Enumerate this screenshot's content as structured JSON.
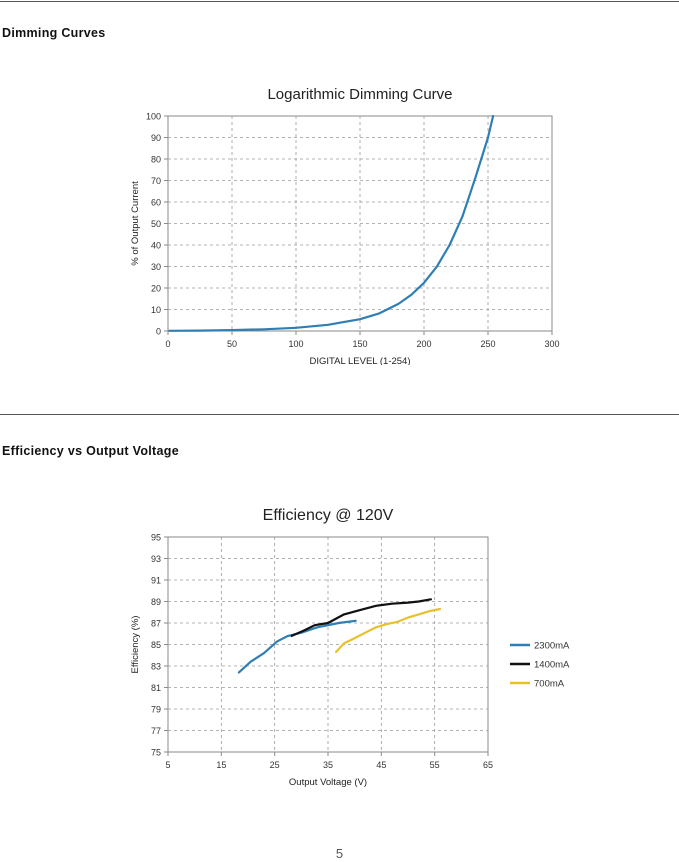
{
  "sections": {
    "dimming_title": "Dimming Curves",
    "efficiency_title": "Efficiency vs Output Voltage"
  },
  "page_number": "5",
  "chart_data": [
    {
      "type": "line",
      "title": "Logarithmic Dimming Curve",
      "xlabel": "DIGITAL LEVEL (1-254)",
      "ylabel": "% of Output Current",
      "xlim": [
        0,
        300
      ],
      "ylim": [
        0,
        100
      ],
      "xticks": [
        0,
        50,
        100,
        150,
        200,
        250,
        300
      ],
      "yticks": [
        0,
        10,
        20,
        30,
        40,
        50,
        60,
        70,
        80,
        90,
        100
      ],
      "grid": true,
      "legend": "none",
      "series": [
        {
          "color": "#2f7fb4",
          "points": [
            [
              1,
              0.1
            ],
            [
              25,
              0.2
            ],
            [
              50,
              0.4
            ],
            [
              75,
              0.8
            ],
            [
              100,
              1.5
            ],
            [
              125,
              2.9
            ],
            [
              150,
              5.5
            ],
            [
              165,
              8.2
            ],
            [
              180,
              12.6
            ],
            [
              190,
              16.8
            ],
            [
              200,
              22.4
            ],
            [
              210,
              29.9
            ],
            [
              220,
              40
            ],
            [
              230,
              53.2
            ],
            [
              240,
              71
            ],
            [
              250,
              90
            ],
            [
              254,
              100
            ]
          ]
        }
      ]
    },
    {
      "type": "line",
      "title": "Efficiency @ 120V",
      "xlabel": "Output Voltage (V)",
      "ylabel": "Efficiency (%)",
      "xlim": [
        5,
        65
      ],
      "ylim": [
        75,
        95
      ],
      "xticks": [
        5,
        15,
        25,
        35,
        45,
        55,
        65
      ],
      "yticks": [
        75,
        77,
        79,
        81,
        83,
        85,
        87,
        89,
        91,
        93,
        95
      ],
      "grid": true,
      "legend": "right",
      "series": [
        {
          "name": "2300mA",
          "color": "#2f7fb4",
          "points": [
            [
              18.3,
              82.4
            ],
            [
              20.5,
              83.4
            ],
            [
              23,
              84.2
            ],
            [
              25.5,
              85.3
            ],
            [
              27.5,
              85.8
            ],
            [
              30,
              86.1
            ],
            [
              33,
              86.6
            ],
            [
              35,
              86.8
            ],
            [
              37,
              87.0
            ],
            [
              40.2,
              87.2
            ]
          ]
        },
        {
          "name": "1400mA",
          "color": "#111111",
          "points": [
            [
              28.2,
              85.8
            ],
            [
              30.5,
              86.3
            ],
            [
              32.5,
              86.8
            ],
            [
              35,
              87.0
            ],
            [
              38,
              87.8
            ],
            [
              41,
              88.2
            ],
            [
              44,
              88.6
            ],
            [
              47,
              88.8
            ],
            [
              50,
              88.9
            ],
            [
              52,
              89.0
            ],
            [
              54.3,
              89.2
            ]
          ]
        },
        {
          "name": "700mA",
          "color": "#e8c12a",
          "points": [
            [
              36.5,
              84.3
            ],
            [
              38,
              85.1
            ],
            [
              40,
              85.6
            ],
            [
              42,
              86.1
            ],
            [
              44,
              86.6
            ],
            [
              46,
              86.9
            ],
            [
              48,
              87.1
            ],
            [
              50,
              87.5
            ],
            [
              52,
              87.8
            ],
            [
              54,
              88.1
            ],
            [
              56,
              88.3
            ]
          ]
        }
      ]
    }
  ]
}
